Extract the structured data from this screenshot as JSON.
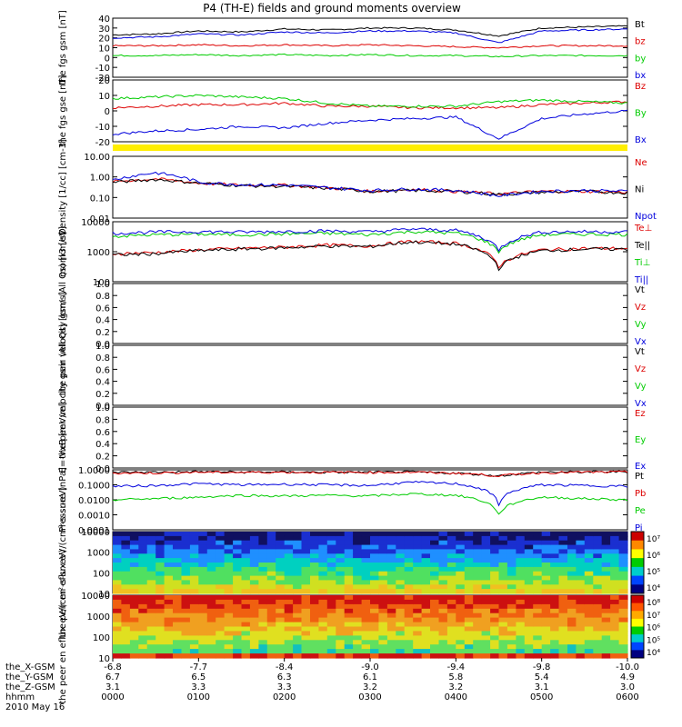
{
  "title": "P4 (TH-E) fields and ground moments overview",
  "chart_data": [
    {
      "type": "line",
      "ylabel": "the fgs gsm [nT]",
      "ylim": [
        -20,
        40
      ],
      "ticks": [
        "40",
        "30",
        "20",
        "10",
        "0",
        "-10",
        "-20"
      ],
      "series": [
        {
          "name": "Bt",
          "color": "#000000",
          "values": [
            23,
            24,
            27,
            26,
            29,
            28,
            30,
            30,
            28,
            22,
            30,
            31,
            32
          ]
        },
        {
          "name": "bz",
          "color": "#dd0000",
          "values": [
            12,
            12,
            13,
            12,
            13,
            12,
            13,
            12,
            11,
            10,
            12,
            12,
            12
          ]
        },
        {
          "name": "by",
          "color": "#00cc00",
          "values": [
            2,
            2,
            3,
            2,
            3,
            2,
            3,
            2,
            2,
            1,
            2,
            2,
            2
          ]
        },
        {
          "name": "bx",
          "color": "#0000dd",
          "values": [
            20,
            21,
            24,
            23,
            26,
            25,
            27,
            27,
            25,
            15,
            27,
            28,
            29
          ]
        }
      ]
    },
    {
      "type": "line",
      "ylabel": "the fgs gse [nT]",
      "ylim": [
        -20,
        20
      ],
      "ticks": [
        "20",
        "10",
        "0",
        "-10",
        "-20"
      ],
      "series": [
        {
          "name": "Bz",
          "color": "#dd0000",
          "values": [
            2,
            3,
            4,
            4,
            5,
            3,
            3,
            2,
            2,
            2,
            4,
            5,
            6
          ]
        },
        {
          "name": "By",
          "color": "#00cc00",
          "values": [
            8,
            9,
            10,
            9,
            8,
            5,
            3,
            3,
            3,
            6,
            7,
            6,
            5
          ]
        },
        {
          "name": "Bx",
          "color": "#0000dd",
          "values": [
            -15,
            -13,
            -12,
            -10,
            -11,
            -8,
            -6,
            -5,
            -4,
            -18,
            -5,
            -2,
            0
          ]
        }
      ]
    },
    {
      "type": "line",
      "ylabel": "Density [1/cc] [cm-3]",
      "ylim": [
        0.01,
        10
      ],
      "log": true,
      "ticks": [
        "10.00",
        "1.00",
        "0.10",
        "0.01"
      ],
      "series": [
        {
          "name": "Ne",
          "color": "#dd0000",
          "values": [
            0.6,
            0.8,
            0.5,
            0.4,
            0.4,
            0.3,
            0.2,
            0.25,
            0.2,
            0.15,
            0.2,
            0.2,
            0.18
          ]
        },
        {
          "name": "Ni",
          "color": "#000000",
          "values": [
            0.55,
            0.75,
            0.5,
            0.38,
            0.35,
            0.28,
            0.2,
            0.22,
            0.2,
            0.14,
            0.18,
            0.2,
            0.17
          ]
        },
        {
          "name": "Npot",
          "color": "#0000dd",
          "values": [
            0.7,
            1.6,
            0.55,
            0.42,
            0.4,
            0.3,
            0.22,
            0.26,
            0.22,
            0.12,
            0.2,
            0.22,
            0.2
          ]
        }
      ]
    },
    {
      "type": "line",
      "ylabel": "mom3 [eV]",
      "ylim": [
        20,
        12000
      ],
      "log": true,
      "ticks": [
        "10000",
        "1000",
        "100"
      ],
      "series": [
        {
          "name": "Te⊥",
          "color": "#dd0000",
          "values": [
            400,
            450,
            600,
            700,
            800,
            1000,
            900,
            1500,
            1200,
            100,
            600,
            700,
            700
          ]
        },
        {
          "name": "Te||",
          "color": "#000000",
          "values": [
            350,
            400,
            550,
            650,
            750,
            900,
            850,
            1400,
            1100,
            80,
            550,
            650,
            650
          ]
        },
        {
          "name": "Ti⊥",
          "color": "#00cc00",
          "values": [
            2500,
            3000,
            3200,
            3000,
            3300,
            3500,
            3000,
            4200,
            3600,
            500,
            3000,
            3200,
            3100
          ]
        },
        {
          "name": "Ti||",
          "color": "#0000dd",
          "values": [
            3500,
            4000,
            4200,
            4000,
            4300,
            4500,
            4100,
            5500,
            4800,
            600,
            4000,
            4200,
            4100
          ]
        }
      ]
    },
    {
      "type": "line",
      "ylabel": "the peir velocity gsm (All Qs) [km/s]",
      "ylim": [
        0,
        1
      ],
      "ticks": [
        "1.0",
        "0.8",
        "0.6",
        "0.4",
        "0.2",
        "0.0"
      ],
      "series": [
        {
          "name": "Vt",
          "color": "#000000",
          "values": []
        },
        {
          "name": "Vz",
          "color": "#dd0000",
          "values": []
        },
        {
          "name": "Vy",
          "color": "#00cc00",
          "values": []
        },
        {
          "name": "Vx",
          "color": "#0000dd",
          "values": []
        }
      ]
    },
    {
      "type": "line",
      "ylabel": "the peer velocity gsm (All Qs) [km/s]",
      "ylim": [
        0,
        1
      ],
      "ticks": [
        "1.0",
        "0.8",
        "0.6",
        "0.4",
        "0.2",
        "0.0"
      ],
      "series": [
        {
          "name": "Vt",
          "color": "#000000",
          "values": []
        },
        {
          "name": "Vz",
          "color": "#dd0000",
          "values": []
        },
        {
          "name": "Vy",
          "color": "#00cc00",
          "values": []
        },
        {
          "name": "Vx",
          "color": "#0000dd",
          "values": []
        }
      ]
    },
    {
      "type": "line",
      "ylabel": "E=-VxB [mV/m]",
      "ylim": [
        0,
        1
      ],
      "ticks": [
        "1.0",
        "0.8",
        "0.6",
        "0.4",
        "0.2",
        "0.0"
      ],
      "series": [
        {
          "name": "Ez",
          "color": "#dd0000",
          "values": []
        },
        {
          "name": "Ey",
          "color": "#00cc00",
          "values": []
        },
        {
          "name": "Ex",
          "color": "#0000dd",
          "values": []
        }
      ]
    },
    {
      "type": "line",
      "ylabel": "Pressure [nPa]",
      "ylim": [
        0.0001,
        1
      ],
      "log": true,
      "ticks": [
        "1.0000",
        "0.1000",
        "0.0100",
        "0.0010",
        "0.0001"
      ],
      "series": [
        {
          "name": "Pt",
          "color": "#000000",
          "values": [
            0.7,
            0.7,
            0.75,
            0.7,
            0.72,
            0.7,
            0.7,
            0.72,
            0.6,
            0.4,
            0.7,
            0.72,
            0.75
          ]
        },
        {
          "name": "Pb",
          "color": "#dd0000",
          "values": [
            0.6,
            0.62,
            0.7,
            0.68,
            0.7,
            0.68,
            0.68,
            0.7,
            0.6,
            0.4,
            0.65,
            0.7,
            0.72
          ]
        },
        {
          "name": "Pe",
          "color": "#00cc00",
          "values": [
            0.01,
            0.012,
            0.015,
            0.02,
            0.018,
            0.02,
            0.018,
            0.025,
            0.02,
            0.001,
            0.015,
            0.012,
            0.01
          ]
        },
        {
          "name": "Pi",
          "color": "#0000dd",
          "values": [
            0.08,
            0.09,
            0.12,
            0.1,
            0.11,
            0.1,
            0.09,
            0.15,
            0.12,
            0.005,
            0.1,
            0.09,
            0.08
          ]
        }
      ]
    },
    {
      "type": "heatmap",
      "ylabel": "the peir en eflux eV/(cm²-s-sr-eV)",
      "ylim": [
        10,
        20000
      ],
      "log": true,
      "ticks": [
        "10000",
        "1000",
        "100",
        "10"
      ],
      "colorbar_ticks": [
        "10⁷",
        "10⁶",
        "10⁵",
        "10⁴"
      ]
    },
    {
      "type": "heatmap",
      "ylabel": "the peer en eflux eV/(cm²-s-sr-eV)",
      "ylim": [
        10,
        20000
      ],
      "log": true,
      "ticks": [
        "10000",
        "1000",
        "100",
        "10"
      ],
      "colorbar_ticks": [
        "10⁸",
        "10⁷",
        "10⁶",
        "10⁵",
        "10⁴"
      ]
    }
  ],
  "xaxis": {
    "rows": [
      {
        "label": "the_X-GSM",
        "values": [
          "-6.8",
          "-7.7",
          "-8.4",
          "-9.0",
          "-9.4",
          "-9.8",
          "-10.0"
        ]
      },
      {
        "label": "the_Y-GSM",
        "values": [
          "6.7",
          "6.5",
          "6.3",
          "6.1",
          "5.8",
          "5.4",
          "4.9"
        ]
      },
      {
        "label": "the_Z-GSM",
        "values": [
          "3.1",
          "3.3",
          "3.3",
          "3.2",
          "3.2",
          "3.1",
          "3.0"
        ]
      },
      {
        "label": "hhmm",
        "values": [
          "0000",
          "0100",
          "0200",
          "0300",
          "0400",
          "0500",
          "0600"
        ]
      }
    ],
    "date": "2010 May 16"
  }
}
